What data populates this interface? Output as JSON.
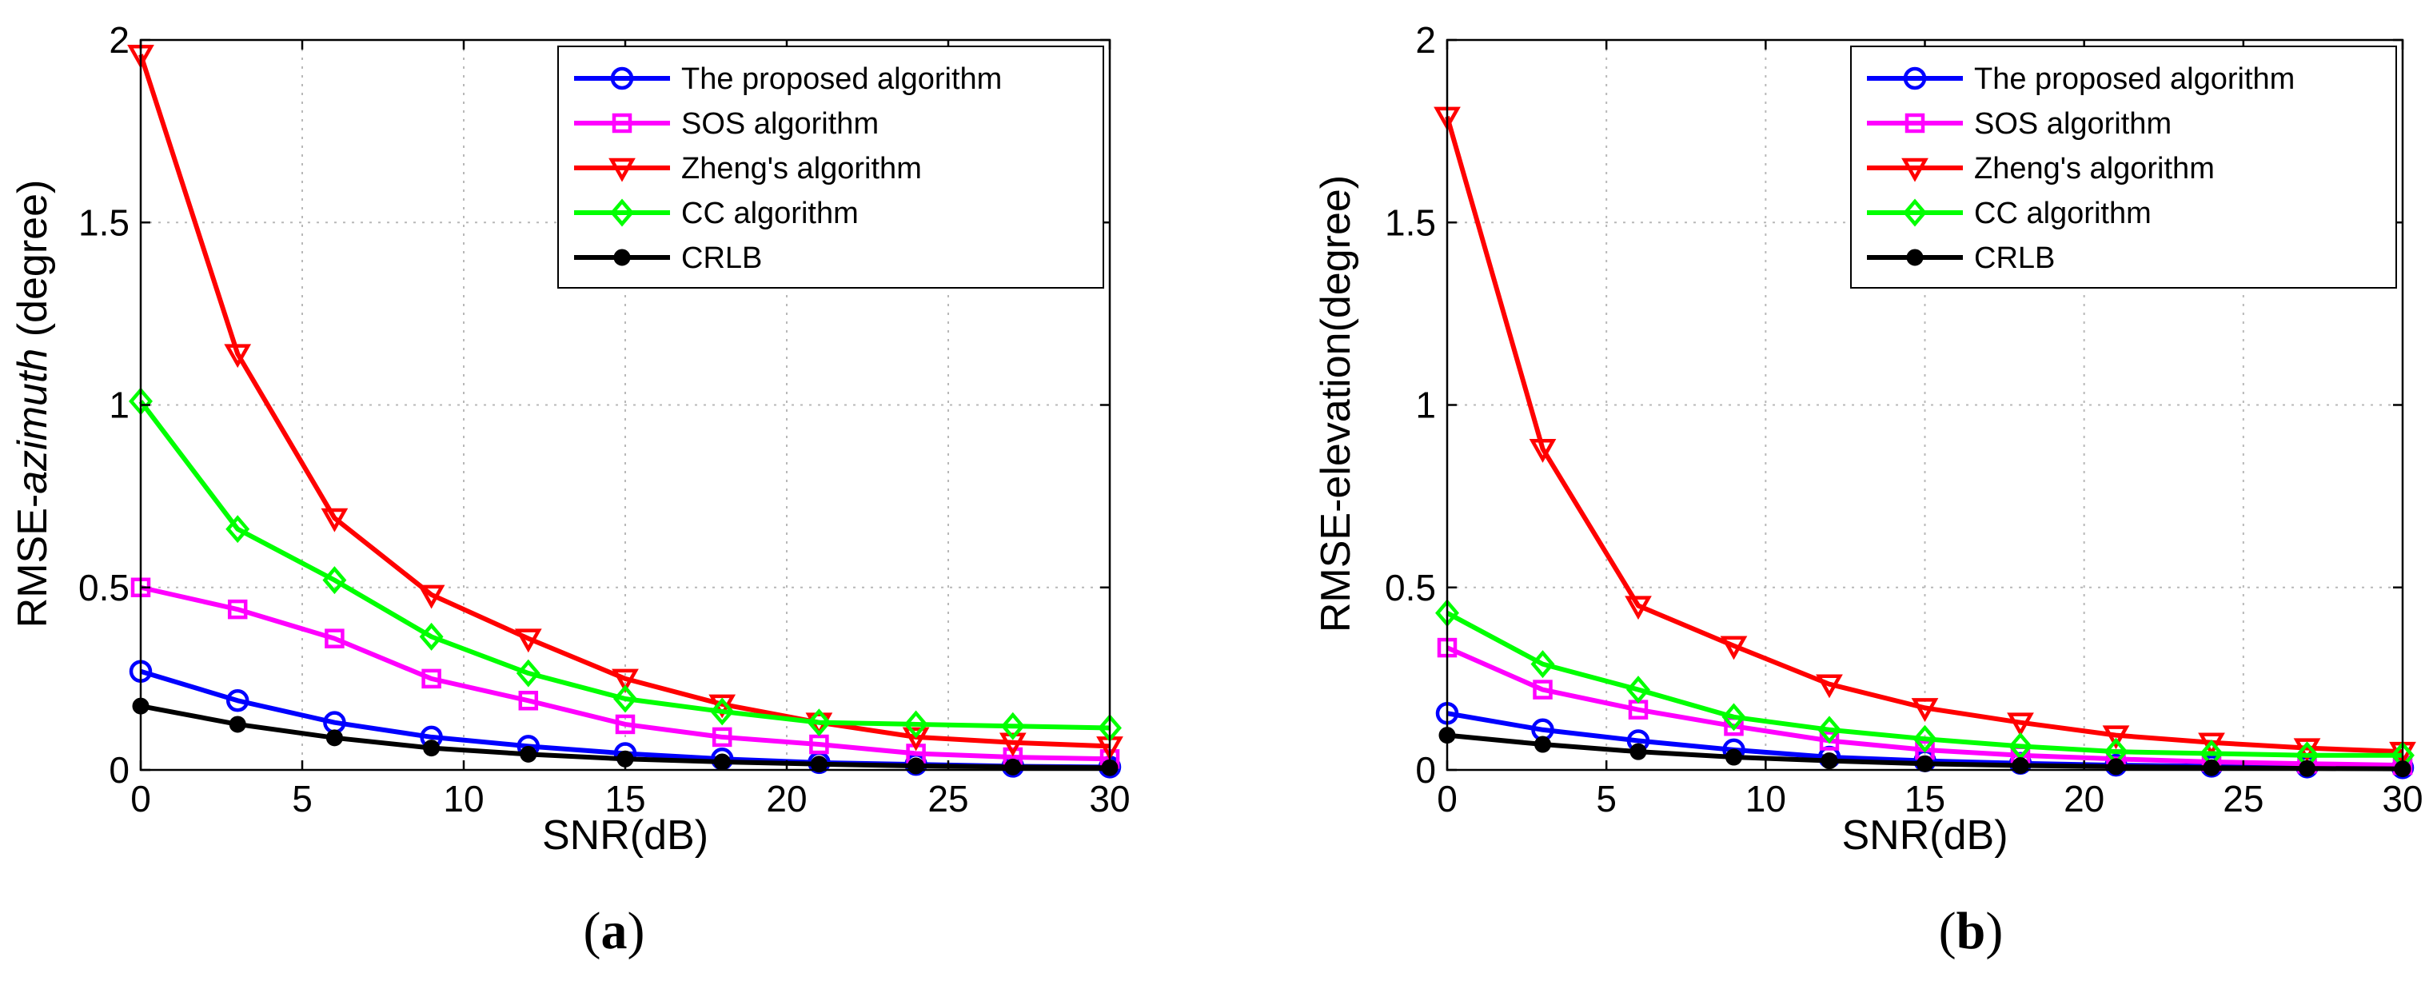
{
  "chart_data": [
    {
      "type": "line",
      "panel": "a",
      "caption": [
        "(",
        "a",
        ")"
      ],
      "xlabel": "SNR(dB)",
      "ylabel": [
        "RMSE-",
        "azimuth",
        " (degree)"
      ],
      "xlim": [
        0,
        30
      ],
      "ylim": [
        0,
        2
      ],
      "xticks": [
        "0",
        "5",
        "10",
        "15",
        "20",
        "25",
        "30"
      ],
      "yticks": [
        "0",
        "0.5",
        "1",
        "1.5",
        "2"
      ],
      "grid": true,
      "legend_position": "top-right",
      "x": [
        0,
        3,
        6,
        9,
        12,
        15,
        18,
        21,
        24,
        27,
        30
      ],
      "series": [
        {
          "name": "The proposed algorithm",
          "color": "#0000ff",
          "marker": "circle",
          "values": [
            0.27,
            0.19,
            0.13,
            0.09,
            0.065,
            0.045,
            0.03,
            0.02,
            0.015,
            0.01,
            0.008
          ]
        },
        {
          "name": "SOS algorithm",
          "color": "#ff00ff",
          "marker": "square",
          "values": [
            0.5,
            0.44,
            0.36,
            0.25,
            0.19,
            0.125,
            0.09,
            0.07,
            0.045,
            0.035,
            0.03
          ]
        },
        {
          "name": "Zheng's algorithm",
          "color": "#ff0000",
          "marker": "triangle-down",
          "values": [
            1.96,
            1.14,
            0.69,
            0.48,
            0.36,
            0.25,
            0.18,
            0.13,
            0.09,
            0.075,
            0.065
          ]
        },
        {
          "name": "CC algorithm",
          "color": "#00ff00",
          "marker": "diamond",
          "values": [
            1.01,
            0.66,
            0.52,
            0.365,
            0.265,
            0.195,
            0.16,
            0.13,
            0.125,
            0.12,
            0.115
          ]
        },
        {
          "name": "CRLB",
          "color": "#000000",
          "marker": "filled-circle",
          "values": [
            0.175,
            0.125,
            0.088,
            0.06,
            0.043,
            0.03,
            0.022,
            0.016,
            0.011,
            0.008,
            0.006
          ]
        }
      ]
    },
    {
      "type": "line",
      "panel": "b",
      "caption": [
        "(",
        "b",
        ")"
      ],
      "xlabel": "SNR(dB)",
      "ylabel": [
        "RMSE-elevation(degree)"
      ],
      "xlim": [
        0,
        30
      ],
      "ylim": [
        0,
        2
      ],
      "xticks": [
        "0",
        "5",
        "10",
        "15",
        "20",
        "25",
        "30"
      ],
      "yticks": [
        "0",
        "0.5",
        "1",
        "1.5",
        "2"
      ],
      "grid": true,
      "legend_position": "top-right",
      "x": [
        0,
        3,
        6,
        9,
        12,
        15,
        18,
        21,
        24,
        27,
        30
      ],
      "series": [
        {
          "name": "The proposed algorithm",
          "color": "#0000ff",
          "marker": "circle",
          "values": [
            0.155,
            0.11,
            0.08,
            0.055,
            0.035,
            0.025,
            0.018,
            0.013,
            0.01,
            0.008,
            0.006
          ]
        },
        {
          "name": "SOS algorithm",
          "color": "#ff00ff",
          "marker": "square",
          "values": [
            0.335,
            0.22,
            0.165,
            0.12,
            0.08,
            0.055,
            0.04,
            0.03,
            0.022,
            0.017,
            0.013
          ]
        },
        {
          "name": "Zheng's algorithm",
          "color": "#ff0000",
          "marker": "triangle-down",
          "values": [
            1.79,
            0.88,
            0.45,
            0.34,
            0.235,
            0.17,
            0.13,
            0.095,
            0.075,
            0.06,
            0.05
          ]
        },
        {
          "name": "CC algorithm",
          "color": "#00ff00",
          "marker": "diamond",
          "values": [
            0.43,
            0.29,
            0.22,
            0.145,
            0.11,
            0.085,
            0.065,
            0.05,
            0.045,
            0.04,
            0.04
          ]
        },
        {
          "name": "CRLB",
          "color": "#000000",
          "marker": "filled-circle",
          "values": [
            0.095,
            0.07,
            0.05,
            0.035,
            0.025,
            0.017,
            0.012,
            0.009,
            0.006,
            0.004,
            0.003
          ]
        }
      ]
    }
  ]
}
